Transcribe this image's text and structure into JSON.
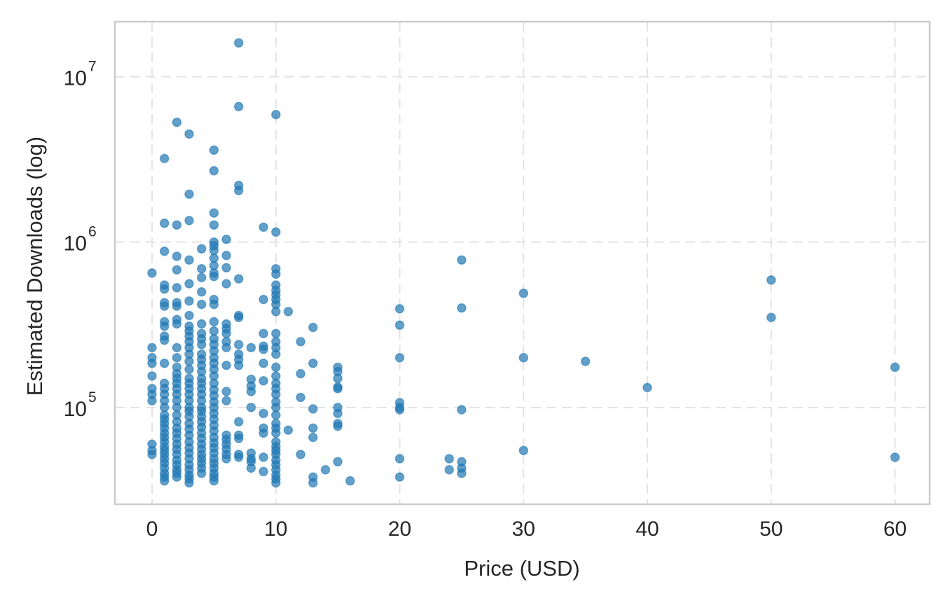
{
  "chart_data": {
    "type": "scatter",
    "title": "",
    "xlabel": "Price (USD)",
    "ylabel": "Estimated Downloads (log)",
    "xlim": [
      -3.0,
      62.8
    ],
    "ylim": [
      26000,
      21500000
    ],
    "yscale": "log",
    "grid": true,
    "marker_color": "#1f77b4",
    "marker_opacity": 0.7,
    "x_ticks": [
      {
        "value": 0,
        "label": "0"
      },
      {
        "value": 10,
        "label": "10"
      },
      {
        "value": 20,
        "label": "20"
      },
      {
        "value": 30,
        "label": "30"
      },
      {
        "value": 40,
        "label": "40"
      },
      {
        "value": 50,
        "label": "50"
      },
      {
        "value": 60,
        "label": "60"
      }
    ],
    "y_ticks": [
      {
        "value": 100000,
        "base": "10",
        "exp": "5"
      },
      {
        "value": 1000000,
        "base": "10",
        "exp": "6"
      },
      {
        "value": 10000000,
        "base": "10",
        "exp": "7"
      }
    ],
    "points": [
      [
        0,
        650000
      ],
      [
        0,
        230000
      ],
      [
        0,
        200000
      ],
      [
        0,
        185000
      ],
      [
        0,
        155000
      ],
      [
        0,
        130000
      ],
      [
        0,
        120000
      ],
      [
        0,
        110000
      ],
      [
        0,
        60000
      ],
      [
        0,
        55000
      ],
      [
        0,
        52000
      ],
      [
        1,
        3200000
      ],
      [
        1,
        1300000
      ],
      [
        1,
        880000
      ],
      [
        1,
        550000
      ],
      [
        1,
        520000
      ],
      [
        1,
        430000
      ],
      [
        1,
        410000
      ],
      [
        1,
        330000
      ],
      [
        1,
        310000
      ],
      [
        1,
        270000
      ],
      [
        1,
        255000
      ],
      [
        1,
        185000
      ],
      [
        1,
        140000
      ],
      [
        1,
        130000
      ],
      [
        1,
        120000
      ],
      [
        1,
        110000
      ],
      [
        1,
        100000
      ],
      [
        1,
        90000
      ],
      [
        1,
        85000
      ],
      [
        1,
        80000
      ],
      [
        1,
        75000
      ],
      [
        1,
        70000
      ],
      [
        1,
        66000
      ],
      [
        1,
        62000
      ],
      [
        1,
        58000
      ],
      [
        1,
        55000
      ],
      [
        1,
        52000
      ],
      [
        1,
        49000
      ],
      [
        1,
        46000
      ],
      [
        1,
        43000
      ],
      [
        1,
        40000
      ],
      [
        1,
        38000
      ],
      [
        1,
        36000
      ],
      [
        2,
        5300000
      ],
      [
        2,
        1270000
      ],
      [
        2,
        820000
      ],
      [
        2,
        680000
      ],
      [
        2,
        530000
      ],
      [
        2,
        430000
      ],
      [
        2,
        410000
      ],
      [
        2,
        340000
      ],
      [
        2,
        320000
      ],
      [
        2,
        230000
      ],
      [
        2,
        200000
      ],
      [
        2,
        175000
      ],
      [
        2,
        160000
      ],
      [
        2,
        150000
      ],
      [
        2,
        140000
      ],
      [
        2,
        130000
      ],
      [
        2,
        120000
      ],
      [
        2,
        110000
      ],
      [
        2,
        100000
      ],
      [
        2,
        90000
      ],
      [
        2,
        82000
      ],
      [
        2,
        75000
      ],
      [
        2,
        70000
      ],
      [
        2,
        65000
      ],
      [
        2,
        60000
      ],
      [
        2,
        56000
      ],
      [
        2,
        52000
      ],
      [
        2,
        48000
      ],
      [
        2,
        45000
      ],
      [
        2,
        42000
      ],
      [
        2,
        40000
      ],
      [
        2,
        38000
      ],
      [
        3,
        4500000
      ],
      [
        3,
        1950000
      ],
      [
        3,
        1350000
      ],
      [
        3,
        780000
      ],
      [
        3,
        560000
      ],
      [
        3,
        440000
      ],
      [
        3,
        360000
      ],
      [
        3,
        310000
      ],
      [
        3,
        290000
      ],
      [
        3,
        270000
      ],
      [
        3,
        250000
      ],
      [
        3,
        230000
      ],
      [
        3,
        210000
      ],
      [
        3,
        190000
      ],
      [
        3,
        170000
      ],
      [
        3,
        150000
      ],
      [
        3,
        140000
      ],
      [
        3,
        130000
      ],
      [
        3,
        120000
      ],
      [
        3,
        110000
      ],
      [
        3,
        100000
      ],
      [
        3,
        95000
      ],
      [
        3,
        88000
      ],
      [
        3,
        80000
      ],
      [
        3,
        74000
      ],
      [
        3,
        68000
      ],
      [
        3,
        62000
      ],
      [
        3,
        57000
      ],
      [
        3,
        53000
      ],
      [
        3,
        49000
      ],
      [
        3,
        45000
      ],
      [
        3,
        42000
      ],
      [
        3,
        39000
      ],
      [
        3,
        37000
      ],
      [
        3,
        35000
      ],
      [
        4,
        910000
      ],
      [
        4,
        690000
      ],
      [
        4,
        610000
      ],
      [
        4,
        500000
      ],
      [
        4,
        420000
      ],
      [
        4,
        320000
      ],
      [
        4,
        280000
      ],
      [
        4,
        260000
      ],
      [
        4,
        240000
      ],
      [
        4,
        210000
      ],
      [
        4,
        195000
      ],
      [
        4,
        180000
      ],
      [
        4,
        165000
      ],
      [
        4,
        150000
      ],
      [
        4,
        140000
      ],
      [
        4,
        130000
      ],
      [
        4,
        120000
      ],
      [
        4,
        110000
      ],
      [
        4,
        100000
      ],
      [
        4,
        95000
      ],
      [
        4,
        88000
      ],
      [
        4,
        82000
      ],
      [
        4,
        76000
      ],
      [
        4,
        70000
      ],
      [
        4,
        65000
      ],
      [
        4,
        60000
      ],
      [
        4,
        56000
      ],
      [
        4,
        52000
      ],
      [
        4,
        49000
      ],
      [
        4,
        46000
      ],
      [
        4,
        43000
      ],
      [
        4,
        40000
      ],
      [
        5,
        3600000
      ],
      [
        5,
        2700000
      ],
      [
        5,
        1500000
      ],
      [
        5,
        1270000
      ],
      [
        5,
        1000000
      ],
      [
        5,
        950000
      ],
      [
        5,
        890000
      ],
      [
        5,
        800000
      ],
      [
        5,
        720000
      ],
      [
        5,
        650000
      ],
      [
        5,
        620000
      ],
      [
        5,
        450000
      ],
      [
        5,
        420000
      ],
      [
        5,
        330000
      ],
      [
        5,
        290000
      ],
      [
        5,
        260000
      ],
      [
        5,
        240000
      ],
      [
        5,
        220000
      ],
      [
        5,
        200000
      ],
      [
        5,
        185000
      ],
      [
        5,
        170000
      ],
      [
        5,
        155000
      ],
      [
        5,
        140000
      ],
      [
        5,
        128000
      ],
      [
        5,
        118000
      ],
      [
        5,
        108000
      ],
      [
        5,
        100000
      ],
      [
        5,
        92000
      ],
      [
        5,
        85000
      ],
      [
        5,
        78000
      ],
      [
        5,
        72000
      ],
      [
        5,
        66000
      ],
      [
        5,
        61000
      ],
      [
        5,
        57000
      ],
      [
        5,
        53000
      ],
      [
        5,
        49000
      ],
      [
        5,
        46000
      ],
      [
        5,
        43000
      ],
      [
        5,
        40000
      ],
      [
        5,
        38000
      ],
      [
        5,
        36000
      ],
      [
        6,
        1040000
      ],
      [
        6,
        830000
      ],
      [
        6,
        700000
      ],
      [
        6,
        560000
      ],
      [
        6,
        320000
      ],
      [
        6,
        300000
      ],
      [
        6,
        280000
      ],
      [
        6,
        250000
      ],
      [
        6,
        230000
      ],
      [
        6,
        180000
      ],
      [
        6,
        125000
      ],
      [
        6,
        110000
      ],
      [
        6,
        68000
      ],
      [
        6,
        64000
      ],
      [
        6,
        60000
      ],
      [
        6,
        56000
      ],
      [
        6,
        52000
      ],
      [
        6,
        49000
      ],
      [
        7,
        16000000
      ],
      [
        7,
        6600000
      ],
      [
        7,
        2200000
      ],
      [
        7,
        2050000
      ],
      [
        7,
        600000
      ],
      [
        7,
        360000
      ],
      [
        7,
        350000
      ],
      [
        7,
        240000
      ],
      [
        7,
        210000
      ],
      [
        7,
        195000
      ],
      [
        7,
        180000
      ],
      [
        7,
        82000
      ],
      [
        7,
        68000
      ],
      [
        7,
        65000
      ],
      [
        7,
        52000
      ],
      [
        7,
        50000
      ],
      [
        8,
        230000
      ],
      [
        8,
        148000
      ],
      [
        8,
        135000
      ],
      [
        8,
        125000
      ],
      [
        8,
        100000
      ],
      [
        8,
        53000
      ],
      [
        8,
        49000
      ],
      [
        8,
        47000
      ],
      [
        8,
        43000
      ],
      [
        9,
        1230000
      ],
      [
        9,
        450000
      ],
      [
        9,
        280000
      ],
      [
        9,
        235000
      ],
      [
        9,
        225000
      ],
      [
        9,
        185000
      ],
      [
        9,
        145000
      ],
      [
        9,
        92000
      ],
      [
        9,
        75000
      ],
      [
        9,
        70000
      ],
      [
        9,
        50000
      ],
      [
        9,
        41000
      ],
      [
        10,
        5900000
      ],
      [
        10,
        1150000
      ],
      [
        10,
        690000
      ],
      [
        10,
        640000
      ],
      [
        10,
        550000
      ],
      [
        10,
        510000
      ],
      [
        10,
        480000
      ],
      [
        10,
        450000
      ],
      [
        10,
        420000
      ],
      [
        10,
        380000
      ],
      [
        10,
        280000
      ],
      [
        10,
        250000
      ],
      [
        10,
        230000
      ],
      [
        10,
        210000
      ],
      [
        10,
        175000
      ],
      [
        10,
        155000
      ],
      [
        10,
        140000
      ],
      [
        10,
        130000
      ],
      [
        10,
        120000
      ],
      [
        10,
        108000
      ],
      [
        10,
        100000
      ],
      [
        10,
        90000
      ],
      [
        10,
        80000
      ],
      [
        10,
        75000
      ],
      [
        10,
        70000
      ],
      [
        10,
        62000
      ],
      [
        10,
        58000
      ],
      [
        10,
        55000
      ],
      [
        10,
        52000
      ],
      [
        10,
        48000
      ],
      [
        10,
        45000
      ],
      [
        10,
        42000
      ],
      [
        10,
        39000
      ],
      [
        10,
        37000
      ],
      [
        10,
        35000
      ],
      [
        11,
        380000
      ],
      [
        11,
        73000
      ],
      [
        12,
        250000
      ],
      [
        12,
        160000
      ],
      [
        12,
        115000
      ],
      [
        12,
        52000
      ],
      [
        13,
        305000
      ],
      [
        13,
        185000
      ],
      [
        13,
        98000
      ],
      [
        13,
        75000
      ],
      [
        13,
        66000
      ],
      [
        13,
        38000
      ],
      [
        13,
        35000
      ],
      [
        14,
        42000
      ],
      [
        15,
        175000
      ],
      [
        15,
        165000
      ],
      [
        15,
        150000
      ],
      [
        15,
        133000
      ],
      [
        15,
        130000
      ],
      [
        15,
        100000
      ],
      [
        15,
        92000
      ],
      [
        15,
        80000
      ],
      [
        15,
        77000
      ],
      [
        15,
        47000
      ],
      [
        16,
        36000
      ],
      [
        20,
        395000
      ],
      [
        20,
        315000
      ],
      [
        20,
        200000
      ],
      [
        20,
        107000
      ],
      [
        20,
        100000
      ],
      [
        20,
        97000
      ],
      [
        20,
        49000
      ],
      [
        20,
        38000
      ],
      [
        24,
        49000
      ],
      [
        24,
        42000
      ],
      [
        25,
        780000
      ],
      [
        25,
        400000
      ],
      [
        25,
        97000
      ],
      [
        25,
        47000
      ],
      [
        25,
        43000
      ],
      [
        25,
        40000
      ],
      [
        30,
        490000
      ],
      [
        30,
        200000
      ],
      [
        30,
        55000
      ],
      [
        35,
        190000
      ],
      [
        40,
        132000
      ],
      [
        50,
        590000
      ],
      [
        50,
        350000
      ],
      [
        60,
        175000
      ],
      [
        60,
        50000
      ]
    ]
  }
}
